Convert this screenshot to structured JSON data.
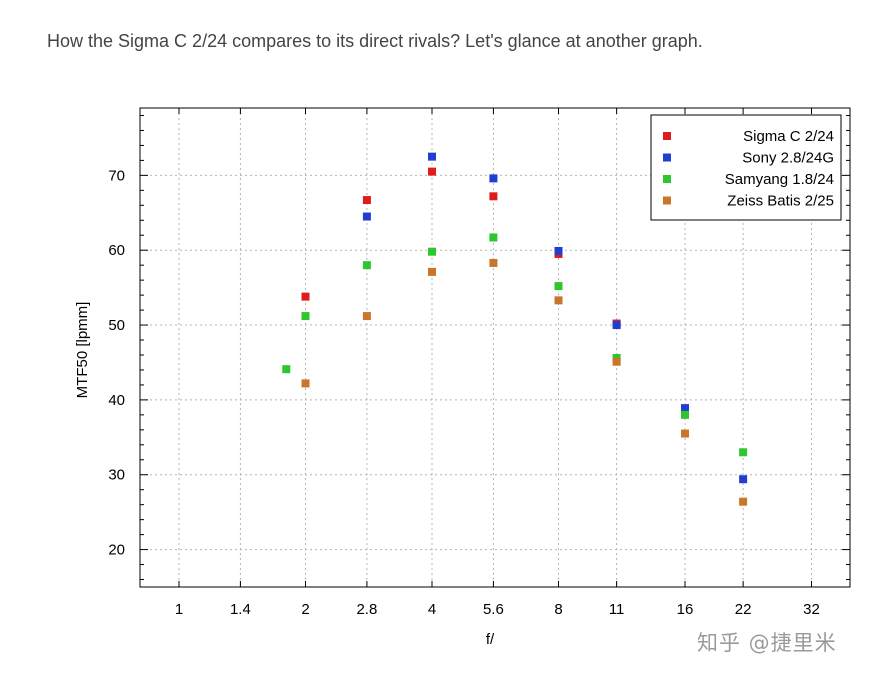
{
  "intro_text": "How the Sigma C 2/24 compares to its direct rivals? Let's glance at another graph.",
  "watermark": "知乎 @捷里米",
  "chart_data": {
    "type": "scatter",
    "xlabel": "f/",
    "ylabel": "MTF50 [lpmm]",
    "x_scale": "log2 (f-stop)",
    "x_ticks": [
      "1",
      "1.4",
      "2",
      "2.8",
      "4",
      "5.6",
      "8",
      "11",
      "16",
      "22",
      "32"
    ],
    "ylim": [
      15,
      79
    ],
    "y_ticks": [
      20,
      30,
      40,
      50,
      60,
      70
    ],
    "grid": true,
    "legend_position": "top-right",
    "series": [
      {
        "name": "Sigma C 2/24",
        "color": "#e01b1b",
        "points": [
          [
            "2",
            53.8
          ],
          [
            "2.8",
            66.7
          ],
          [
            "4",
            70.5
          ],
          [
            "5.6",
            67.2
          ],
          [
            "8",
            59.5
          ],
          [
            "11",
            50.2
          ]
        ]
      },
      {
        "name": "Sony 2.8/24G",
        "color": "#1f3fd1",
        "points": [
          [
            "2.8",
            64.5
          ],
          [
            "4",
            72.5
          ],
          [
            "5.6",
            69.6
          ],
          [
            "8",
            59.9
          ],
          [
            "11",
            50.0
          ],
          [
            "16",
            38.9
          ],
          [
            "22",
            29.4
          ]
        ]
      },
      {
        "name": "Samyang 1.8/24",
        "color": "#2dc62d",
        "points": [
          [
            "1.8",
            44.1
          ],
          [
            "2",
            51.2
          ],
          [
            "2.8",
            58.0
          ],
          [
            "4",
            59.8
          ],
          [
            "5.6",
            61.7
          ],
          [
            "8",
            55.2
          ],
          [
            "11",
            45.6
          ],
          [
            "16",
            38.0
          ],
          [
            "22",
            33.0
          ]
        ]
      },
      {
        "name": "Zeiss Batis 2/25",
        "color": "#c8762a",
        "points": [
          [
            "2",
            42.2
          ],
          [
            "2.8",
            51.2
          ],
          [
            "4",
            57.1
          ],
          [
            "5.6",
            58.3
          ],
          [
            "8",
            53.3
          ],
          [
            "11",
            45.1
          ],
          [
            "16",
            35.5
          ],
          [
            "22",
            26.4
          ]
        ]
      }
    ]
  }
}
